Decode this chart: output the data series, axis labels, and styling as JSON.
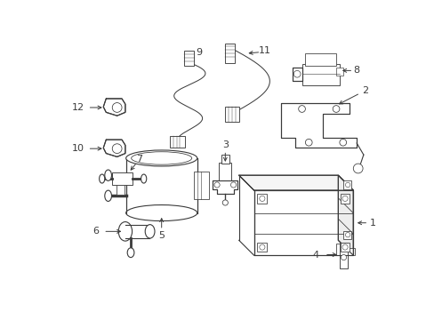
{
  "bg_color": "#ffffff",
  "line_color": "#3a3a3a",
  "lw": 0.8,
  "fig_w": 4.89,
  "fig_h": 3.6,
  "dpi": 100
}
